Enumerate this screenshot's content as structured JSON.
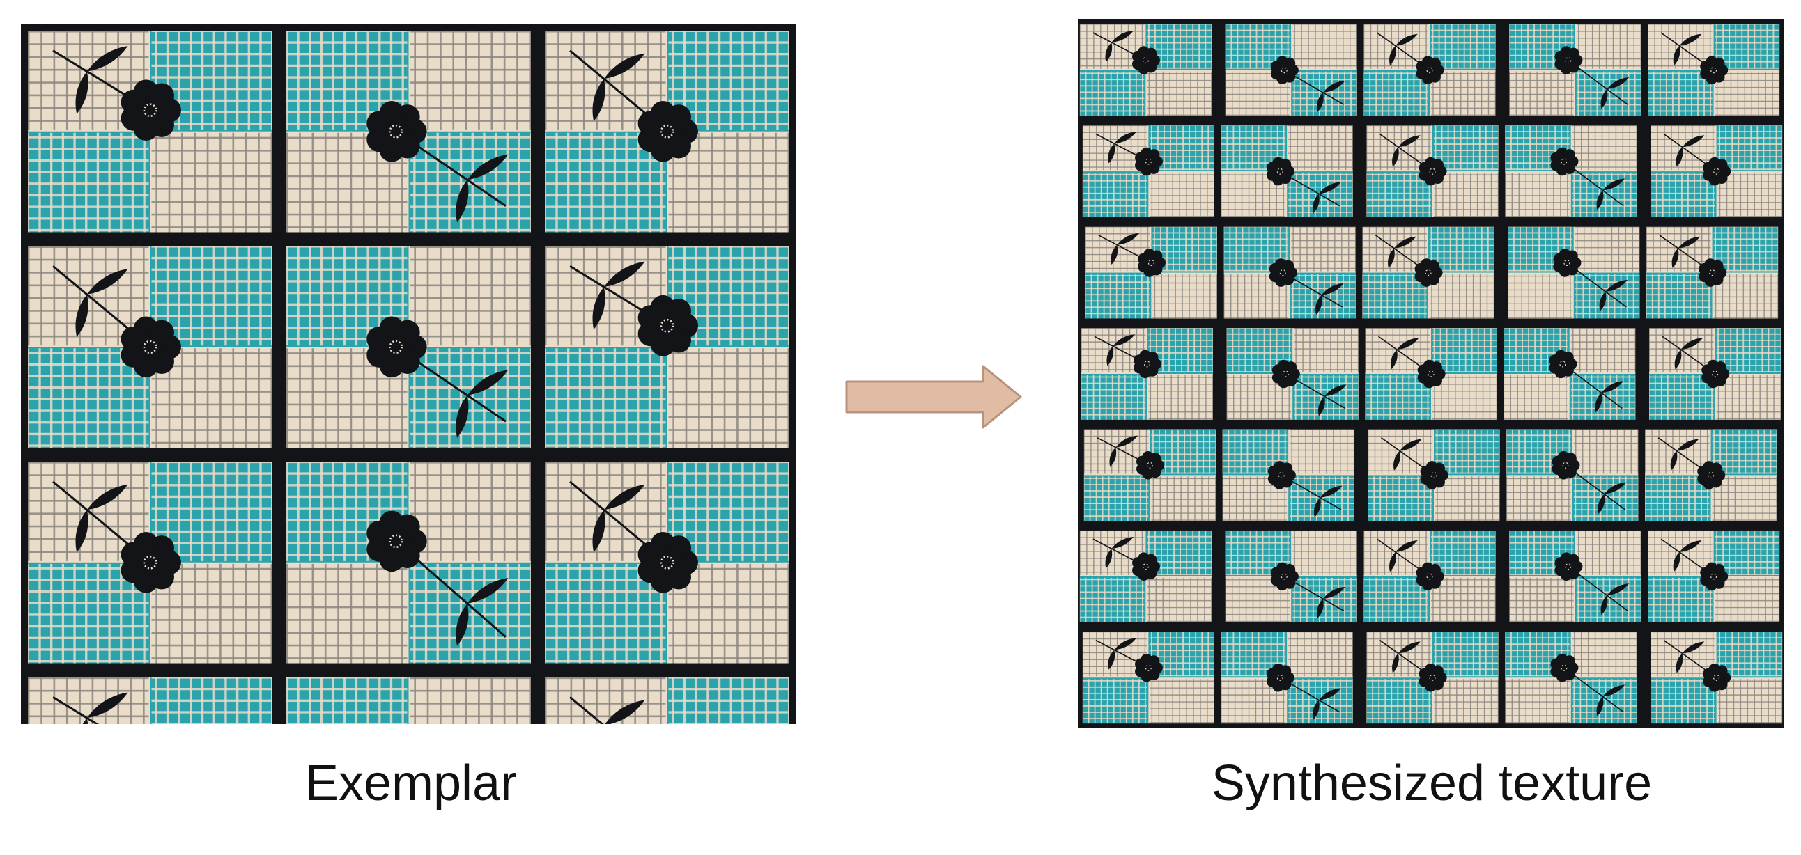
{
  "figure": {
    "exemplar": {
      "caption": "Exemplar",
      "grid": [
        4,
        3
      ],
      "pattern": "fabric-flower-check"
    },
    "arrow": {
      "direction": "right",
      "fill": "#e0bca4",
      "stroke": "#b8927a"
    },
    "synthesized": {
      "caption": "Synthesized texture",
      "grid": [
        5,
        7
      ],
      "pattern": "fabric-flower-check"
    },
    "colors": {
      "beige": "#d8c4a8",
      "beige_light": "#e9dcc8",
      "teal": "#2aa3ad",
      "teal_dark": "#1b8590",
      "ink": "#121418",
      "gray": "#8c8680"
    }
  }
}
